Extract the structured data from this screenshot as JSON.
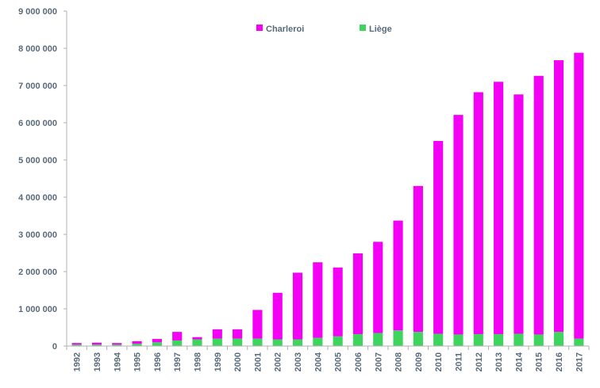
{
  "chart_data": {
    "type": "bar",
    "stacked": true,
    "title": "",
    "xlabel": "",
    "ylabel": "",
    "ylim": [
      0,
      9000000
    ],
    "yticks": [
      {
        "value": 0,
        "label": "0"
      },
      {
        "value": 1000000,
        "label": "1 000 000"
      },
      {
        "value": 2000000,
        "label": "2 000 000"
      },
      {
        "value": 3000000,
        "label": "3 000 000"
      },
      {
        "value": 4000000,
        "label": "4 000 000"
      },
      {
        "value": 5000000,
        "label": "5 000 000"
      },
      {
        "value": 6000000,
        "label": "6 000 000"
      },
      {
        "value": 7000000,
        "label": "7 000 000"
      },
      {
        "value": 8000000,
        "label": "8 000 000"
      },
      {
        "value": 9000000,
        "label": "9 000 000"
      }
    ],
    "grid": false,
    "legend_position": "top-center",
    "categories": [
      "1992",
      "1993",
      "1994",
      "1995",
      "1996",
      "1997",
      "1998",
      "1999",
      "2000",
      "2001",
      "2002",
      "2003",
      "2004",
      "2005",
      "2006",
      "2007",
      "2008",
      "2009",
      "2010",
      "2011",
      "2012",
      "2013",
      "2014",
      "2015",
      "2016",
      "2017"
    ],
    "series": [
      {
        "name": "Liège",
        "color": "#3ed45e",
        "values": [
          40000,
          40000,
          40000,
          60000,
          100000,
          150000,
          180000,
          200000,
          200000,
          200000,
          180000,
          180000,
          220000,
          260000,
          320000,
          350000,
          420000,
          380000,
          330000,
          310000,
          320000,
          320000,
          330000,
          310000,
          380000,
          200000
        ]
      },
      {
        "name": "Charleroi",
        "color": "#f400f4",
        "values": [
          40000,
          50000,
          40000,
          70000,
          90000,
          230000,
          60000,
          250000,
          250000,
          770000,
          1250000,
          1790000,
          2030000,
          1850000,
          2170000,
          2450000,
          2950000,
          3920000,
          5180000,
          5900000,
          6500000,
          6780000,
          6430000,
          6950000,
          7300000,
          7680000
        ]
      }
    ]
  }
}
